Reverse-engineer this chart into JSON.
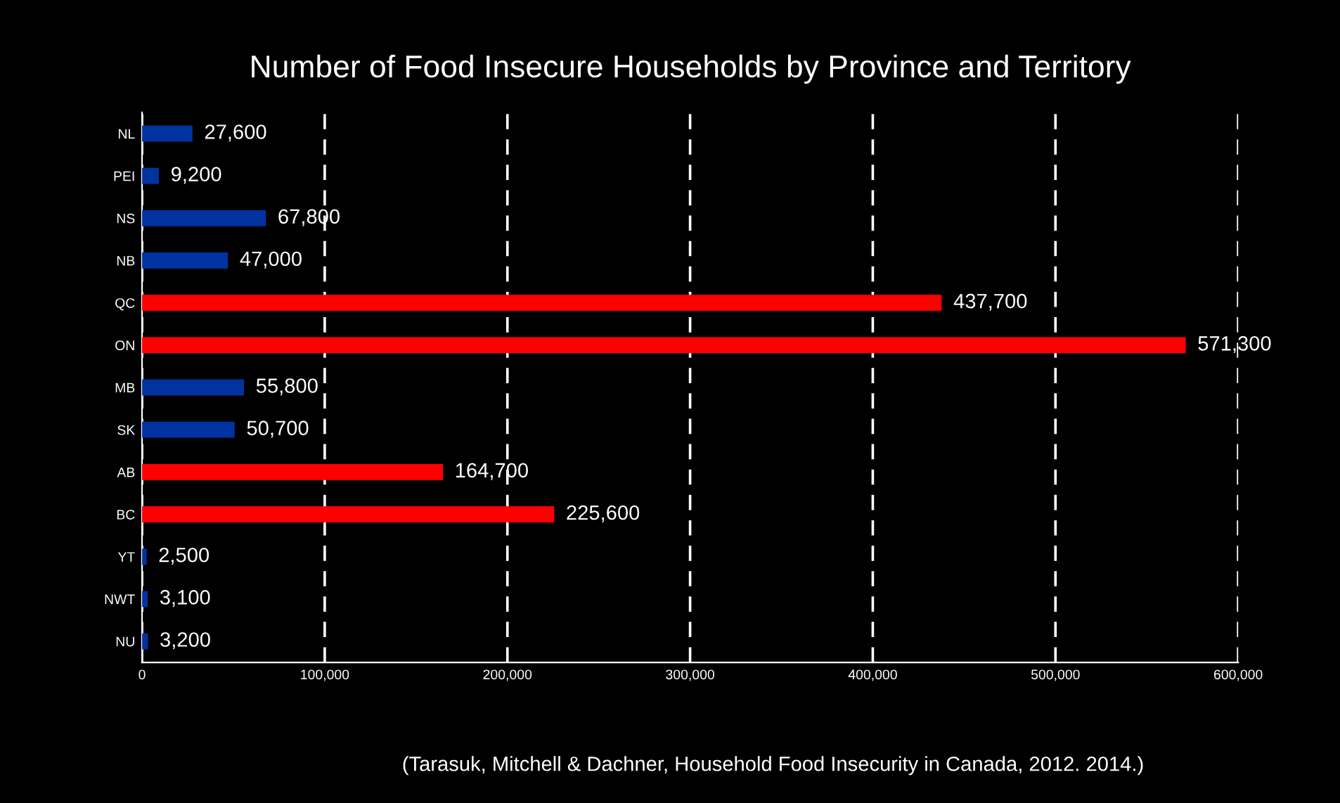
{
  "chart_data": {
    "type": "bar",
    "orientation": "horizontal",
    "title": "Number of Food Insecure Households by Province and Territory",
    "categories": [
      "NL",
      "PEI",
      "NS",
      "NB",
      "QC",
      "ON",
      "MB",
      "SK",
      "AB",
      "BC",
      "YT",
      "NWT",
      "NU"
    ],
    "values": [
      27600,
      9200,
      67800,
      47000,
      437700,
      571300,
      55800,
      50700,
      164700,
      225600,
      2500,
      3100,
      3200
    ],
    "colors": [
      "#0033a0",
      "#0033a0",
      "#0033a0",
      "#0033a0",
      "#ff0000",
      "#ff0000",
      "#0033a0",
      "#0033a0",
      "#ff0000",
      "#ff0000",
      "#0033a0",
      "#0033a0",
      "#0033a0"
    ],
    "value_labels": [
      "27,600",
      "9,200",
      "67,800",
      "47,000",
      "437,700",
      "571,300",
      "55,800",
      "50,700",
      "164,700",
      "225,600",
      "2,500",
      "3,100",
      "3,200"
    ],
    "xlim": [
      0,
      600000
    ],
    "xticks": [
      0,
      {
        "value": 100000,
        "label": "100,000"
      },
      {
        "value": 200000,
        "label": "200,000"
      },
      {
        "value": 300000,
        "label": "300,000"
      },
      {
        "value": 400000,
        "label": "400,000"
      },
      {
        "value": 500000,
        "label": "500,000"
      },
      {
        "value": 600000,
        "label": "600,000"
      }
    ],
    "grid": "x",
    "annotations": [
      "(Tarasuk, Mitchell & Dachner, Household Food Insecurity in Canada, 2012. 2014.)"
    ]
  }
}
